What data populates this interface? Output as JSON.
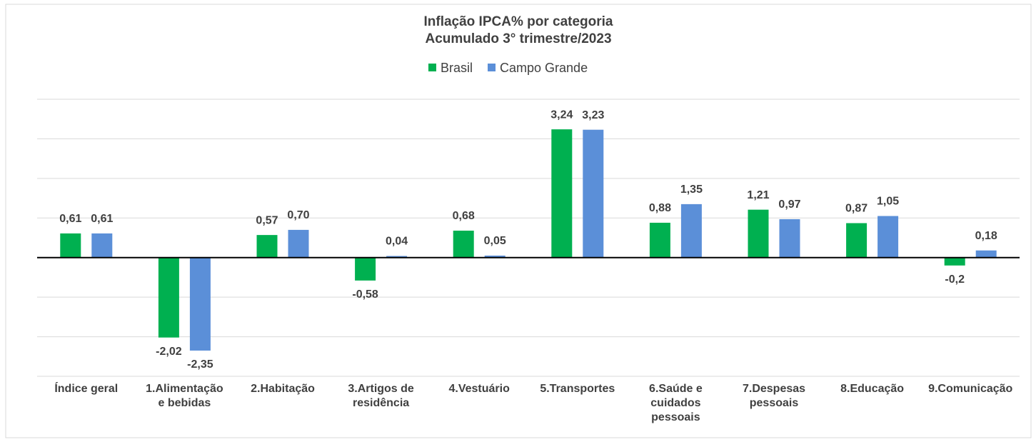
{
  "chart_data": {
    "type": "bar",
    "title": "Inflação IPCA% por categoria",
    "subtitle": "Acumulado 3° trimestre/2023",
    "categories": [
      "Índice geral",
      "1.Alimentação e bebidas",
      "2.Habitação",
      "3.Artigos de residência",
      "4.Vestuário",
      "5.Transportes",
      "6.Saúde e cuidados pessoais",
      "7.Despesas pessoais",
      "8.Educação",
      "9.Comunicação"
    ],
    "series": [
      {
        "name": "Brasil",
        "color": "#00b050",
        "values": [
          0.61,
          -2.02,
          0.57,
          -0.58,
          0.68,
          3.24,
          0.88,
          1.21,
          0.87,
          -0.2
        ],
        "value_labels": [
          "0,61",
          "-2,02",
          "0,57",
          "-0,58",
          "0,68",
          "3,24",
          "0,88",
          "1,21",
          "0,87",
          "-0,2"
        ]
      },
      {
        "name": "Campo Grande",
        "color": "#5b8fd8",
        "values": [
          0.61,
          -2.35,
          0.7,
          0.04,
          0.05,
          3.23,
          1.35,
          0.97,
          1.05,
          0.18
        ],
        "value_labels": [
          "0,61",
          "-2,35",
          "0,70",
          "0,04",
          "0,05",
          "3,23",
          "1,35",
          "0,97",
          "1,05",
          "0,18"
        ]
      }
    ],
    "ylim": [
      -3,
      4
    ],
    "yticks": [
      -3,
      -2,
      -1,
      0,
      1,
      2,
      3,
      4
    ],
    "grid": true,
    "legend": "top"
  }
}
